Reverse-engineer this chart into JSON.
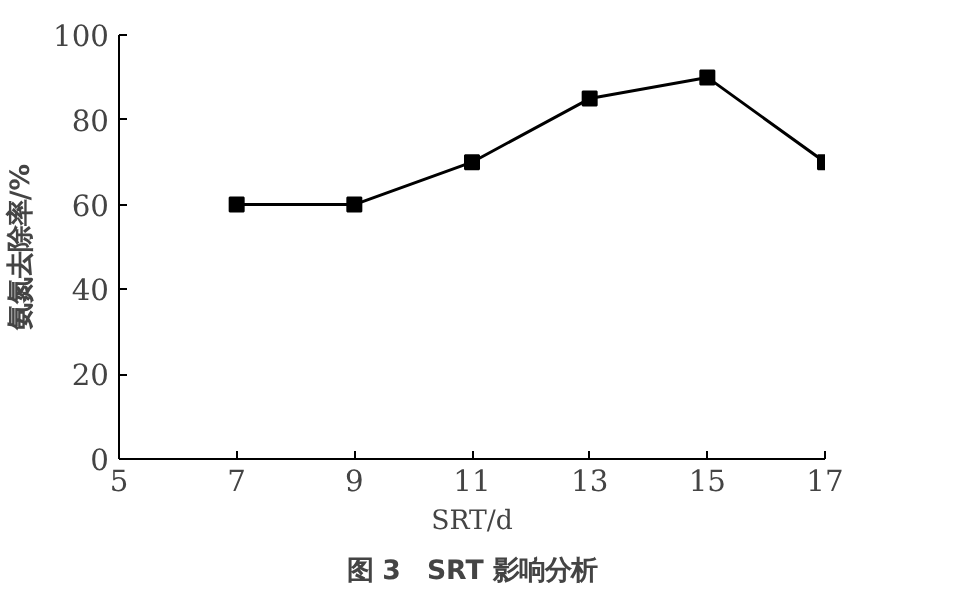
{
  "chart_data": {
    "type": "line",
    "xlabel": "SRT/d",
    "ylabel": "氨氮去除率/%",
    "annotations": [
      "图 3　SRT 影响分析"
    ],
    "x": [
      7,
      9,
      11,
      13,
      15,
      17
    ],
    "series": [
      {
        "color": "#000000",
        "values": [
          60,
          60,
          70,
          85,
          90,
          70
        ]
      }
    ],
    "xlim": [
      5,
      17
    ],
    "xticks": [
      5,
      7,
      9,
      11,
      13,
      15,
      17
    ],
    "ylim": [
      0,
      100
    ],
    "yticks": [
      0,
      20,
      40,
      60,
      80,
      100
    ],
    "grid": false,
    "marker": "square",
    "line_style": "solid"
  }
}
